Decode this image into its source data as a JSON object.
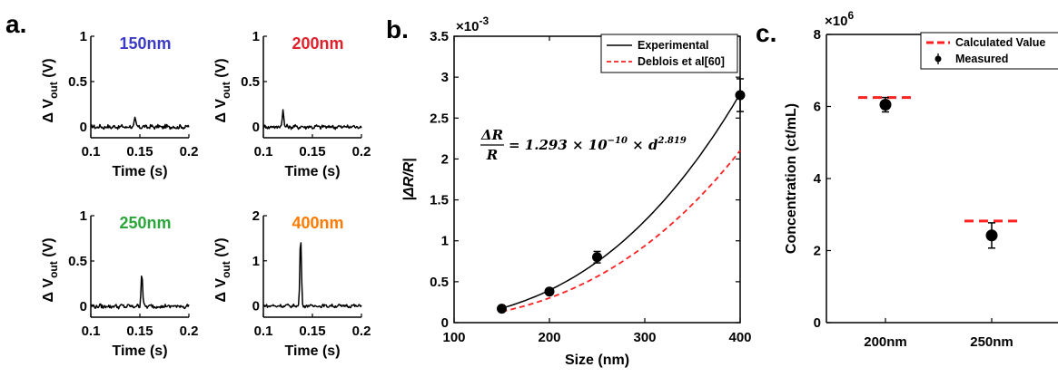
{
  "panel_labels": [
    "a.",
    "b.",
    "c."
  ],
  "chart_data": [
    {
      "type": "line",
      "panel": "a",
      "subplot": 1,
      "label": "150nm",
      "label_color": "#3b3bc8",
      "xlabel": "Time (s)",
      "ylabel": "Δ V",
      "ylabel_sub": "out",
      "ylabel_unit": "(V)",
      "xlim": [
        0.1,
        0.2
      ],
      "ylim": [
        -0.12,
        1
      ],
      "xticks": [
        0.1,
        0.15,
        0.2
      ],
      "xticklabels": [
        "0.1",
        "0.15",
        "0.2"
      ],
      "yticks": [
        0,
        0.5,
        1
      ],
      "yticklabels": [
        "0",
        "0.5",
        "1"
      ],
      "baseline_noise": 0.02,
      "peak": {
        "x": 0.145,
        "height": 0.09
      }
    },
    {
      "type": "line",
      "panel": "a",
      "subplot": 2,
      "label": "200nm",
      "label_color": "#e0202a",
      "xlabel": "Time (s)",
      "ylabel": "Δ V",
      "ylabel_sub": "out",
      "ylabel_unit": "(V)",
      "xlim": [
        0.1,
        0.2
      ],
      "ylim": [
        -0.12,
        1
      ],
      "xticks": [
        0.1,
        0.15,
        0.2
      ],
      "xticklabels": [
        "0.1",
        "0.15",
        "0.2"
      ],
      "yticks": [
        0,
        0.5,
        1
      ],
      "yticklabels": [
        "0",
        "0.5",
        "1"
      ],
      "baseline_noise": 0.02,
      "peak": {
        "x": 0.12,
        "height": 0.19
      }
    },
    {
      "type": "line",
      "panel": "a",
      "subplot": 3,
      "label": "250nm",
      "label_color": "#2aa63a",
      "xlabel": "Time (s)",
      "ylabel": "Δ V",
      "ylabel_sub": "out",
      "ylabel_unit": "(V)",
      "xlim": [
        0.1,
        0.2
      ],
      "ylim": [
        -0.12,
        1
      ],
      "xticks": [
        0.1,
        0.15,
        0.2
      ],
      "xticklabels": [
        "0.1",
        "0.15",
        "0.2"
      ],
      "yticks": [
        0,
        0.5,
        1
      ],
      "yticklabels": [
        "0",
        "0.5",
        "1"
      ],
      "baseline_noise": 0.02,
      "peak": {
        "x": 0.152,
        "height": 0.38
      }
    },
    {
      "type": "line",
      "panel": "a",
      "subplot": 4,
      "label": "400nm",
      "label_color": "#ff7a00",
      "xlabel": "Time (s)",
      "ylabel": "Δ V",
      "ylabel_sub": "out",
      "ylabel_unit": "(V)",
      "xlim": [
        0.1,
        0.2
      ],
      "ylim": [
        -0.25,
        2
      ],
      "xticks": [
        0.1,
        0.15,
        0.2
      ],
      "xticklabels": [
        "0.1",
        "0.15",
        "0.2"
      ],
      "yticks": [
        0,
        1,
        2
      ],
      "yticklabels": [
        "0",
        "1",
        "2"
      ],
      "baseline_noise": 0.03,
      "peak": {
        "x": 0.138,
        "height": 1.55
      }
    },
    {
      "type": "scatter",
      "panel": "b",
      "xlabel": "Size (nm)",
      "ylabel": "|ΔR/R|",
      "y_multiplier": "×10",
      "y_multiplier_exp": "-3",
      "xlim": [
        100,
        400
      ],
      "ylim": [
        0,
        3.5
      ],
      "xticks": [
        100,
        200,
        300,
        400
      ],
      "xticklabels": [
        "100",
        "200",
        "300",
        "400"
      ],
      "yticks": [
        0,
        0.5,
        1,
        1.5,
        2,
        2.5,
        3,
        3.5
      ],
      "yticklabels": [
        "0",
        "0.5",
        "1",
        "1.5",
        "2",
        "2.5",
        "3",
        "3.5"
      ],
      "measured": {
        "x": [
          150,
          200,
          250,
          400
        ],
        "y": [
          0.17,
          0.38,
          0.8,
          2.78
        ],
        "err": [
          0.03,
          0.03,
          0.07,
          0.2
        ]
      },
      "series": [
        {
          "name": "Experimental",
          "style": "solid",
          "color": "#000000",
          "coef": 1.293e-10,
          "exp": 2.819,
          "x_start": 150,
          "x_end": 400
        },
        {
          "name": "Deblois et al[60]",
          "style": "dashed",
          "color": "#ff2020",
          "coef": 1.057e-10,
          "exp": 2.805,
          "x_start": 150,
          "x_end": 400
        }
      ],
      "equation": {
        "lhs_num": "ΔR",
        "lhs_den": "R",
        "rhs": "= 1.293 × 10",
        "rhs_exp": "−10",
        "rhs_tail": "× d",
        "rhs_tail_exp": "2.819"
      },
      "legend": {
        "position": "top-right"
      }
    },
    {
      "type": "scatter",
      "panel": "c",
      "xlabel": "",
      "ylabel": "Concentration (ct/mL)",
      "y_multiplier": "×10",
      "y_multiplier_exp": "6",
      "ylim": [
        0,
        8
      ],
      "yticks": [
        0,
        2,
        4,
        6,
        8
      ],
      "yticklabels": [
        "0",
        "2",
        "4",
        "6",
        "8"
      ],
      "categories": [
        "200nm",
        "250nm"
      ],
      "series": [
        {
          "name": "Calculated Value",
          "style": "dashed",
          "color": "#ff2020",
          "values": [
            6.25,
            2.82
          ]
        },
        {
          "name": "Measured",
          "style": "marker",
          "color": "#000000",
          "values": [
            6.05,
            2.42
          ],
          "err": [
            0.2,
            0.35
          ]
        }
      ],
      "legend": {
        "position": "top-right"
      }
    }
  ]
}
